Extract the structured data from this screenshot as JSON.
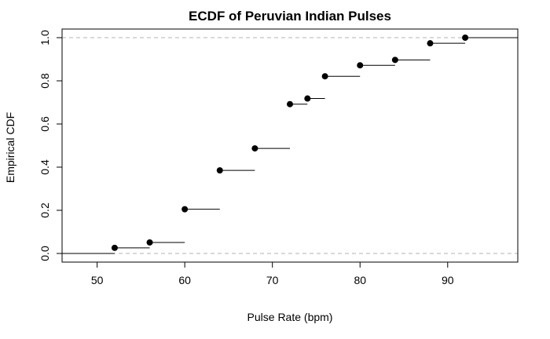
{
  "chart_data": {
    "type": "line",
    "subtype": "ecdf-step",
    "title": "ECDF of Peruvian Indian Pulses",
    "xlabel": "Pulse Rate (bpm)",
    "ylabel": "Empirical CDF",
    "xlim": [
      46,
      98
    ],
    "ylim": [
      -0.04,
      1.04
    ],
    "x_ticks": [
      50,
      60,
      70,
      80,
      90
    ],
    "y_ticks": [
      0.0,
      0.2,
      0.4,
      0.6,
      0.8,
      1.0
    ],
    "x_tick_labels": [
      "50",
      "60",
      "70",
      "80",
      "90"
    ],
    "y_tick_labels": [
      "0.0",
      "0.2",
      "0.4",
      "0.6",
      "0.8",
      "1.0"
    ],
    "reference_lines": [
      0,
      1
    ],
    "points": [
      {
        "x": 52,
        "y": 0.026
      },
      {
        "x": 56,
        "y": 0.051
      },
      {
        "x": 60,
        "y": 0.205
      },
      {
        "x": 64,
        "y": 0.385
      },
      {
        "x": 68,
        "y": 0.487
      },
      {
        "x": 72,
        "y": 0.692
      },
      {
        "x": 74,
        "y": 0.718
      },
      {
        "x": 76,
        "y": 0.821
      },
      {
        "x": 80,
        "y": 0.872
      },
      {
        "x": 84,
        "y": 0.897
      },
      {
        "x": 88,
        "y": 0.974
      },
      {
        "x": 92,
        "y": 1.0
      }
    ],
    "grid": false,
    "colors": {
      "step": "#000000",
      "point": "#000000",
      "reference": "#b3b3b3",
      "frame": "#000000"
    }
  }
}
